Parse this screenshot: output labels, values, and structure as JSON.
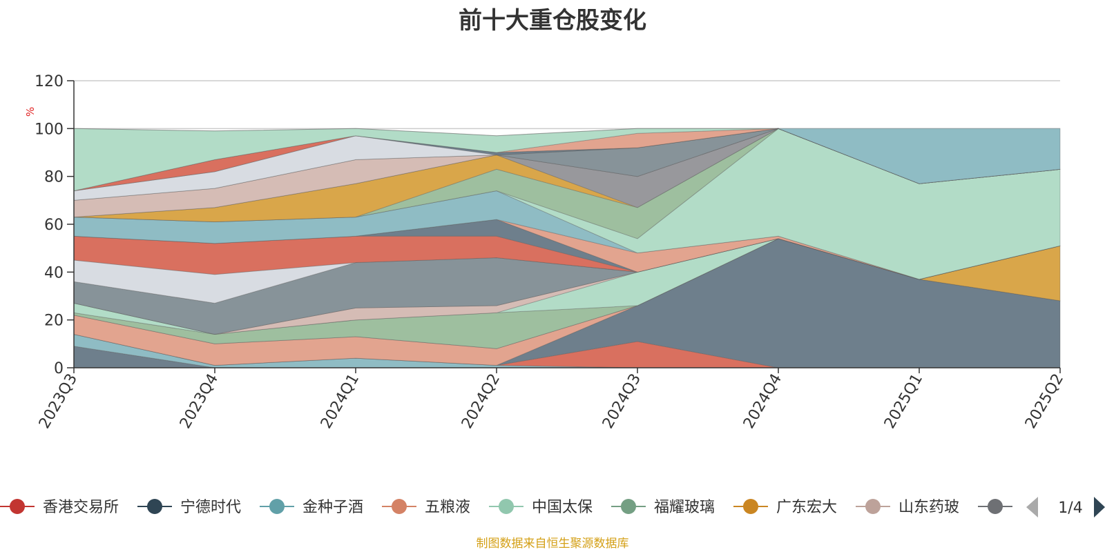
{
  "title": "前十大重仓股变化",
  "source_note": "制图数据来自恒生聚源数据库",
  "legend_page": "1/4",
  "chart_data": {
    "type": "area",
    "stacked": true,
    "title": "前十大重仓股变化",
    "ylabel": "%",
    "ylim": [
      0,
      120
    ],
    "yticks": [
      0,
      20,
      40,
      60,
      80,
      100,
      120
    ],
    "categories": [
      "2023Q3",
      "2023Q4",
      "2024Q1",
      "2024Q2",
      "2024Q3",
      "2024Q4",
      "2025Q1",
      "2025Q2"
    ],
    "legend_position": "bottom",
    "series": [
      {
        "name": "",
        "color": "#6e7f8c",
        "values": [
          9,
          0,
          0,
          0,
          0,
          0,
          0,
          0
        ]
      },
      {
        "name": "",
        "color": "#8fbcc4",
        "values": [
          5,
          1,
          4,
          1,
          0,
          0,
          0,
          0
        ]
      },
      {
        "name": "",
        "color": "#d9705f",
        "values": [
          0,
          0,
          0,
          0,
          11,
          0,
          0,
          0
        ]
      },
      {
        "name": "",
        "color": "#6e7f8c",
        "values": [
          0,
          0,
          0,
          0,
          15,
          54,
          37,
          28
        ]
      },
      {
        "name": "",
        "color": "#e2a48f",
        "values": [
          8,
          9,
          9,
          7,
          0,
          0,
          0,
          0
        ]
      },
      {
        "name": "",
        "color": "#d9a64a",
        "values": [
          0,
          0,
          0,
          0,
          0,
          0,
          0,
          23
        ]
      },
      {
        "name": "",
        "color": "#9ebf9f",
        "values": [
          1,
          4,
          7,
          15,
          0,
          0,
          0,
          0
        ]
      },
      {
        "name": "",
        "color": "#b2dcc7",
        "values": [
          4,
          0,
          0,
          0,
          14,
          0,
          0,
          0
        ]
      },
      {
        "name": "",
        "color": "#d5bcb5",
        "values": [
          0,
          0,
          5,
          3,
          0,
          0,
          0,
          0
        ]
      },
      {
        "name": "",
        "color": "#98989c",
        "values": [
          0,
          0,
          0,
          0,
          0,
          0,
          0,
          0
        ]
      },
      {
        "name": "",
        "color": "#879399",
        "values": [
          9,
          13,
          19,
          20,
          0,
          0,
          0,
          0
        ]
      },
      {
        "name": "",
        "color": "#d8dce2",
        "values": [
          9,
          12,
          0,
          0,
          0,
          0,
          0,
          0
        ]
      },
      {
        "name": "",
        "color": "#d9705f",
        "values": [
          10,
          13,
          11,
          9,
          0,
          0,
          0,
          0
        ]
      },
      {
        "name": "",
        "color": "#6e7f8c",
        "values": [
          0,
          0,
          0,
          7,
          0,
          0,
          0,
          0
        ]
      },
      {
        "name": "",
        "color": "#e2a48f",
        "values": [
          0,
          0,
          0,
          0,
          8,
          1,
          0,
          0
        ]
      },
      {
        "name": "",
        "color": "#8fbcc4",
        "values": [
          8,
          9,
          8,
          12,
          0,
          0,
          0,
          0
        ]
      },
      {
        "name": "",
        "color": "#b2dcc7",
        "values": [
          0,
          0,
          0,
          0,
          6,
          45,
          40,
          32
        ]
      },
      {
        "name": "",
        "color": "#9ebf9f",
        "values": [
          0,
          0,
          0,
          9,
          13,
          0,
          0,
          0
        ]
      },
      {
        "name": "",
        "color": "#d9a64a",
        "values": [
          0,
          6,
          14,
          6,
          0,
          0,
          0,
          0
        ]
      },
      {
        "name": "",
        "color": "#98989c",
        "values": [
          0,
          0,
          0,
          0,
          13,
          0,
          0,
          0
        ]
      },
      {
        "name": "",
        "color": "#d5bcb5",
        "values": [
          7,
          8,
          10,
          0,
          0,
          0,
          0,
          0
        ]
      },
      {
        "name": "",
        "color": "#879399",
        "values": [
          0,
          0,
          0,
          0,
          12,
          0,
          0,
          0
        ]
      },
      {
        "name": "",
        "color": "#d8dce2",
        "values": [
          4,
          7,
          10,
          0,
          0,
          0,
          0,
          0
        ]
      },
      {
        "name": "",
        "color": "#6e7f8c",
        "values": [
          0,
          0,
          0,
          1,
          0,
          0,
          0,
          0
        ]
      },
      {
        "name": "",
        "color": "#d9705f",
        "values": [
          0,
          5,
          0,
          0,
          0,
          0,
          0,
          0
        ]
      },
      {
        "name": "",
        "color": "#e2a48f",
        "values": [
          0,
          0,
          0,
          0,
          6,
          0,
          0,
          0
        ]
      },
      {
        "name": "",
        "color": "#b2dcc7",
        "values": [
          26,
          12,
          3,
          7,
          2,
          0,
          0,
          0
        ]
      },
      {
        "name": "",
        "color": "#8fbcc4",
        "values": [
          0,
          0,
          0,
          0,
          0,
          0,
          23,
          17
        ]
      }
    ],
    "legend": [
      {
        "name": "香港交易所",
        "color": "#c23531"
      },
      {
        "name": "宁德时代",
        "color": "#2f4554"
      },
      {
        "name": "金种子酒",
        "color": "#61a0a8"
      },
      {
        "name": "五粮液",
        "color": "#d48265"
      },
      {
        "name": "中国太保",
        "color": "#91c7ae"
      },
      {
        "name": "福耀玻璃",
        "color": "#749f83"
      },
      {
        "name": "广东宏大",
        "color": "#ca8622"
      },
      {
        "name": "山东药玻",
        "color": "#bda29a"
      },
      {
        "name": "",
        "color": "#6e7074"
      }
    ]
  }
}
